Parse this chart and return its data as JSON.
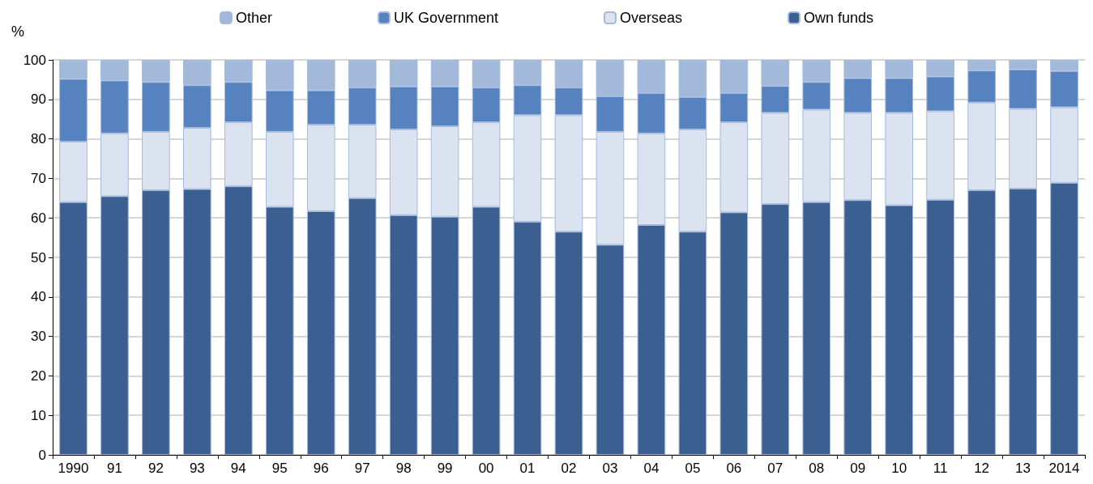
{
  "chart_data": {
    "type": "bar",
    "stacked": true,
    "ylabel": "%",
    "categories": [
      "1990",
      "91",
      "92",
      "93",
      "94",
      "95",
      "96",
      "97",
      "98",
      "99",
      "00",
      "01",
      "02",
      "03",
      "04",
      "05",
      "06",
      "07",
      "08",
      "09",
      "10",
      "11",
      "12",
      "13",
      "2014"
    ],
    "series": [
      {
        "name": "Own funds",
        "color": "#3b5f91",
        "values": [
          64,
          65.5,
          67,
          67.3,
          68,
          62.8,
          61.7,
          65,
          60.7,
          60.3,
          62.8,
          59,
          56.5,
          53.2,
          58.2,
          56.5,
          61.4,
          63.5,
          64,
          64.5,
          63.2,
          64.6,
          67,
          67.4,
          68.9
        ]
      },
      {
        "name": "Overseas",
        "color": "#dbe3f0",
        "values": [
          15.3,
          15.9,
          14.8,
          15.5,
          16.2,
          19,
          21.9,
          18.6,
          21.7,
          22.9,
          21.4,
          27,
          29.5,
          28.6,
          23.2,
          25.9,
          22.8,
          23.1,
          23.4,
          22.1,
          23.4,
          22.4,
          22.2,
          20.2,
          19.1
        ]
      },
      {
        "name": "UK Government",
        "color": "#5683bf",
        "values": [
          15.9,
          13.4,
          12.6,
          10.8,
          10.2,
          10.5,
          8.7,
          9.4,
          10.9,
          10.1,
          8.8,
          7.6,
          7,
          9,
          10.2,
          8.2,
          7.4,
          6.8,
          7,
          8.8,
          8.8,
          8.8,
          8.1,
          10,
          9.2
        ]
      },
      {
        "name": "Other",
        "color": "#a3b9d9",
        "values": [
          4.8,
          5.2,
          5.6,
          6.4,
          5.6,
          7.7,
          7.7,
          7,
          6.7,
          6.7,
          7,
          6.4,
          7,
          9.2,
          8.4,
          9.4,
          8.4,
          6.6,
          5.6,
          4.6,
          4.6,
          4.2,
          2.7,
          2.4,
          2.8
        ]
      }
    ],
    "ylim": [
      0,
      100
    ],
    "yticks": [
      0,
      10,
      20,
      30,
      40,
      50,
      60,
      70,
      80,
      90,
      100
    ],
    "grid": "y",
    "legend": "top"
  }
}
